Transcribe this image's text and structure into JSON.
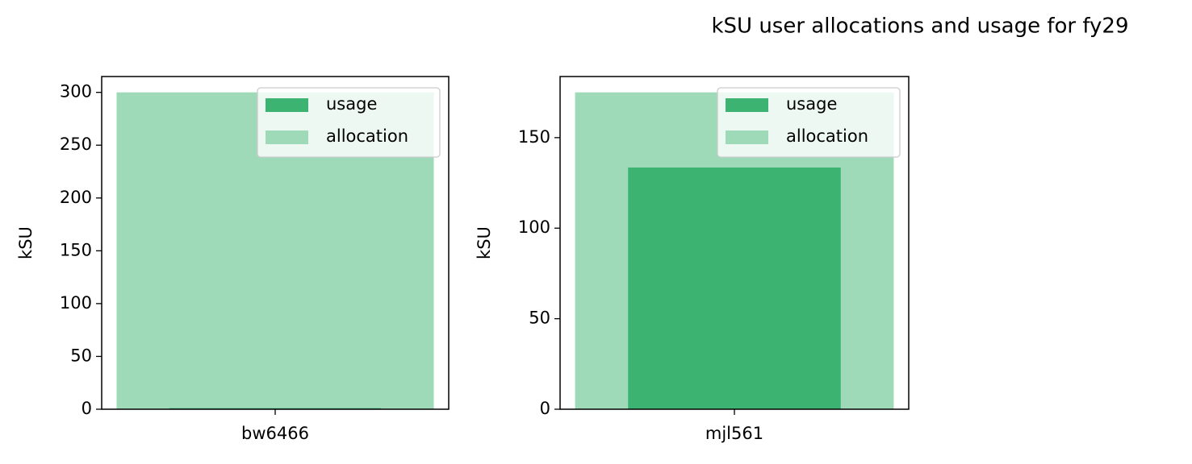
{
  "title": "kSU user allocations and usage for fy29",
  "chart_data": [
    {
      "type": "bar",
      "ylabel": "kSU",
      "categories": [
        "bw6466"
      ],
      "series": [
        {
          "name": "usage",
          "color": "#3cb371",
          "values": [
            1
          ]
        },
        {
          "name": "allocation",
          "color": "#9ed9b8",
          "values": [
            300
          ]
        }
      ],
      "ylim": [
        0,
        315
      ],
      "yticks": [
        0,
        50,
        100,
        150,
        200,
        250,
        300
      ],
      "legend": "upper right"
    },
    {
      "type": "bar",
      "ylabel": "kSU",
      "categories": [
        "mjl561"
      ],
      "series": [
        {
          "name": "usage",
          "color": "#3cb371",
          "values": [
            133.5
          ]
        },
        {
          "name": "allocation",
          "color": "#9ed9b8",
          "values": [
            175
          ]
        }
      ],
      "ylim": [
        0,
        183.75
      ],
      "yticks": [
        0,
        50,
        100,
        150
      ],
      "legend": "upper right"
    }
  ]
}
